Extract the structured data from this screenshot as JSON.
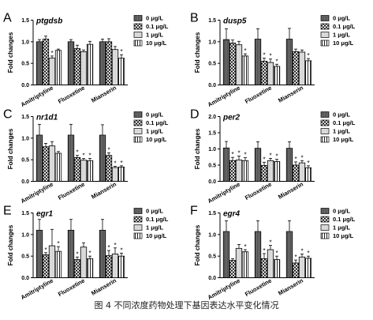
{
  "caption": "图 4  不同浓度药物处理下基因表达水平变化情况",
  "patterns": [
    "dark",
    "checker",
    "light",
    "lines"
  ],
  "chart_data": [
    {
      "type": "bar",
      "panel": "A",
      "title": "ptgdsb",
      "ylabel": "Fold changes",
      "ylim": [
        0,
        1.5
      ],
      "yticks": [
        0.0,
        0.5,
        1.0,
        1.5
      ],
      "categories": [
        "Amitriptyline",
        "Fluoxetine",
        "Mianserin"
      ],
      "legend": [
        "0 μg/L",
        "0.1 μg/L",
        "1 μg/L",
        "10 μg/L"
      ],
      "series": [
        {
          "name": "0 μg/L",
          "values": [
            1.0,
            1.0,
            1.0
          ],
          "errors": [
            0.05,
            0.05,
            0.06
          ],
          "sig": [
            false,
            false,
            false
          ]
        },
        {
          "name": "0.1 μg/L",
          "values": [
            1.06,
            0.84,
            1.0
          ],
          "errors": [
            0.07,
            0.08,
            0.07
          ],
          "sig": [
            false,
            false,
            false
          ]
        },
        {
          "name": "1 μg/L",
          "values": [
            0.62,
            0.77,
            0.82
          ],
          "errors": [
            0.05,
            0.04,
            0.07
          ],
          "sig": [
            true,
            false,
            false
          ]
        },
        {
          "name": "10 μg/L",
          "values": [
            0.8,
            0.94,
            0.62
          ],
          "errors": [
            0.03,
            0.07,
            0.08
          ],
          "sig": [
            false,
            false,
            true
          ]
        }
      ]
    },
    {
      "type": "bar",
      "panel": "B",
      "title": "dusp5",
      "ylabel": "Fold changes",
      "ylim": [
        0,
        1.5
      ],
      "yticks": [
        0.0,
        0.5,
        1.0,
        1.5
      ],
      "categories": [
        "Amitriptyline",
        "Fluoxetine",
        "Mianserin"
      ],
      "legend": [
        "0 μg/L",
        "0.1 μg/L",
        "1 μg/L",
        "10 μg/L"
      ],
      "series": [
        {
          "name": "0 μg/L",
          "values": [
            1.05,
            1.06,
            1.06
          ],
          "errors": [
            0.25,
            0.24,
            0.25
          ],
          "sig": [
            false,
            false,
            false
          ]
        },
        {
          "name": "0.1 μg/L",
          "values": [
            0.97,
            0.55,
            0.77
          ],
          "errors": [
            0.07,
            0.07,
            0.06
          ],
          "sig": [
            false,
            true,
            false
          ]
        },
        {
          "name": "1 μg/L",
          "values": [
            0.93,
            0.52,
            0.76
          ],
          "errors": [
            0.08,
            0.08,
            0.05
          ],
          "sig": [
            false,
            true,
            false
          ]
        },
        {
          "name": "10 μg/L",
          "values": [
            0.67,
            0.43,
            0.56
          ],
          "errors": [
            0.05,
            0.05,
            0.05
          ],
          "sig": [
            true,
            true,
            true
          ]
        }
      ]
    },
    {
      "type": "bar",
      "panel": "C",
      "title": "nr1d1",
      "ylabel": "Fold changes",
      "ylim": [
        0,
        1.5
      ],
      "yticks": [
        0.0,
        0.5,
        1.0,
        1.5
      ],
      "categories": [
        "Amitriptyline",
        "Fluoxetine",
        "Mianserin"
      ],
      "legend": [
        "0 μg/L",
        "0.1 μg/L",
        "1 μg/L",
        "10 μg/L"
      ],
      "series": [
        {
          "name": "0 μg/L",
          "values": [
            1.07,
            1.07,
            1.07
          ],
          "errors": [
            0.25,
            0.25,
            0.24
          ],
          "sig": [
            false,
            false,
            false
          ]
        },
        {
          "name": "0.1 μg/L",
          "values": [
            0.8,
            0.55,
            0.6
          ],
          "errors": [
            0.08,
            0.05,
            0.06
          ],
          "sig": [
            false,
            true,
            true
          ]
        },
        {
          "name": "1 μg/L",
          "values": [
            0.82,
            0.49,
            0.32
          ],
          "errors": [
            0.1,
            0.04,
            0.03
          ],
          "sig": [
            false,
            true,
            true
          ]
        },
        {
          "name": "10 μg/L",
          "values": [
            0.65,
            0.48,
            0.33
          ],
          "errors": [
            0.04,
            0.05,
            0.03
          ],
          "sig": [
            false,
            true,
            true
          ]
        }
      ]
    },
    {
      "type": "bar",
      "panel": "D",
      "title": "per2",
      "ylabel": "Fold changes",
      "ylim": [
        0,
        2.0
      ],
      "yticks": [
        0.0,
        0.5,
        1.0,
        1.5,
        2.0
      ],
      "categories": [
        "Amitriptyline",
        "Fluoxetine",
        "Mianserin"
      ],
      "legend": [
        "0 μg/L",
        "0.1 μg/L",
        "1 μg/L",
        "10 μg/L"
      ],
      "series": [
        {
          "name": "0 μg/L",
          "values": [
            1.03,
            1.02,
            1.02
          ],
          "errors": [
            0.2,
            0.2,
            0.2
          ],
          "sig": [
            false,
            false,
            false
          ]
        },
        {
          "name": "0.1 μg/L",
          "values": [
            0.64,
            0.49,
            0.5
          ],
          "errors": [
            0.1,
            0.1,
            0.1
          ],
          "sig": [
            true,
            true,
            true
          ]
        },
        {
          "name": "1 μg/L",
          "values": [
            0.66,
            0.64,
            0.57
          ],
          "errors": [
            0.12,
            0.07,
            0.07
          ],
          "sig": [
            true,
            true,
            true
          ]
        },
        {
          "name": "10 μg/L",
          "values": [
            0.64,
            0.61,
            0.42
          ],
          "errors": [
            0.09,
            0.07,
            0.06
          ],
          "sig": [
            true,
            true,
            true
          ]
        }
      ]
    },
    {
      "type": "bar",
      "panel": "E",
      "title": "egr1",
      "ylabel": "Fold changes",
      "ylim": [
        0,
        1.5
      ],
      "yticks": [
        0.0,
        0.5,
        1.0,
        1.5
      ],
      "categories": [
        "Amitriptyline",
        "Fluoxetine",
        "Mianserin"
      ],
      "legend": [
        "0 μg/L",
        "0.1 μg/L",
        "1 μg/L",
        "10 μg/L"
      ],
      "series": [
        {
          "name": "0 μg/L",
          "values": [
            1.1,
            1.1,
            1.1
          ],
          "errors": [
            0.25,
            0.25,
            0.25
          ],
          "sig": [
            false,
            false,
            false
          ]
        },
        {
          "name": "0.1 μg/L",
          "values": [
            0.53,
            0.42,
            0.51
          ],
          "errors": [
            0.05,
            0.06,
            0.12
          ],
          "sig": [
            true,
            true,
            true
          ]
        },
        {
          "name": "1 μg/L",
          "values": [
            0.74,
            0.71,
            0.55
          ],
          "errors": [
            0.38,
            0.1,
            0.14
          ],
          "sig": [
            false,
            false,
            true
          ]
        },
        {
          "name": "10 μg/L",
          "values": [
            0.61,
            0.44,
            0.5
          ],
          "errors": [
            0.11,
            0.06,
            0.07
          ],
          "sig": [
            true,
            true,
            true
          ]
        }
      ]
    },
    {
      "type": "bar",
      "panel": "F",
      "title": "egr4",
      "ylabel": "Fold changes",
      "ylim": [
        0,
        1.5
      ],
      "yticks": [
        0.0,
        0.5,
        1.0,
        1.5
      ],
      "categories": [
        "Amitriptyline",
        "Fluoxetine",
        "Mianserin"
      ],
      "legend": [
        "0 μg/L",
        "0.1 μg/L",
        "1 μg/L",
        "10 μg/L"
      ],
      "series": [
        {
          "name": "0 μg/L",
          "values": [
            1.07,
            1.07,
            1.07
          ],
          "errors": [
            0.25,
            0.25,
            0.25
          ],
          "sig": [
            false,
            false,
            false
          ]
        },
        {
          "name": "0.1 μg/L",
          "values": [
            0.4,
            0.44,
            0.34
          ],
          "errors": [
            0.04,
            0.12,
            0.07
          ],
          "sig": [
            false,
            true,
            true
          ]
        },
        {
          "name": "1 μg/L",
          "values": [
            0.68,
            0.65,
            0.48
          ],
          "errors": [
            0.09,
            0.1,
            0.07
          ],
          "sig": [
            false,
            true,
            true
          ]
        },
        {
          "name": "10 μg/L",
          "values": [
            0.6,
            0.42,
            0.45
          ],
          "errors": [
            0.05,
            0.08,
            0.05
          ],
          "sig": [
            true,
            true,
            true
          ]
        }
      ]
    }
  ]
}
